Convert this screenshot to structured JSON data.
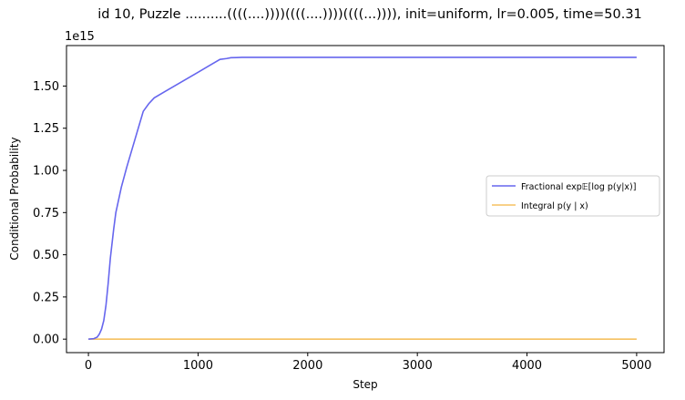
{
  "chart_data": {
    "type": "line",
    "title": "id 10, Puzzle ..........((((....))))((((....))))((((...)))), init=uniform, lr=0.005, time=50.31",
    "xlabel": "Step",
    "ylabel": "Conditional Probability",
    "offset_text": "1e15",
    "xlim": [
      -200,
      5250
    ],
    "ylim": [
      -0.08,
      1.74
    ],
    "xticks": [
      0,
      1000,
      2000,
      3000,
      4000,
      5000
    ],
    "xtick_labels": [
      "0",
      "1000",
      "2000",
      "3000",
      "4000",
      "5000"
    ],
    "yticks": [
      0,
      0.25,
      0.5,
      0.75,
      1.0,
      1.25,
      1.5
    ],
    "ytick_labels": [
      "0.00",
      "0.25",
      "0.50",
      "0.75",
      "1.00",
      "1.25",
      "1.50"
    ],
    "grid": false,
    "legend_position": "center-right",
    "series": [
      {
        "name": "Fractional exp𝔼[log p(y|x)]",
        "color": "#6666ee",
        "x": [
          0,
          50,
          80,
          100,
          120,
          140,
          160,
          180,
          200,
          230,
          250,
          300,
          350,
          400,
          450,
          500,
          550,
          600,
          700,
          800,
          900,
          1000,
          1100,
          1200,
          1260,
          1300,
          1350,
          1400,
          2000,
          3000,
          4000,
          5000
        ],
        "y": [
          0.0,
          0.003,
          0.012,
          0.03,
          0.06,
          0.11,
          0.2,
          0.33,
          0.48,
          0.65,
          0.75,
          0.9,
          1.02,
          1.13,
          1.24,
          1.35,
          1.395,
          1.43,
          1.468,
          1.506,
          1.544,
          1.582,
          1.62,
          1.658,
          1.663,
          1.668,
          1.669,
          1.67,
          1.67,
          1.67,
          1.67,
          1.67
        ]
      },
      {
        "name": "Integral p(y | x)",
        "color": "#f5c060",
        "x": [
          0,
          5000
        ],
        "y": [
          0.0,
          0.0
        ]
      }
    ]
  }
}
